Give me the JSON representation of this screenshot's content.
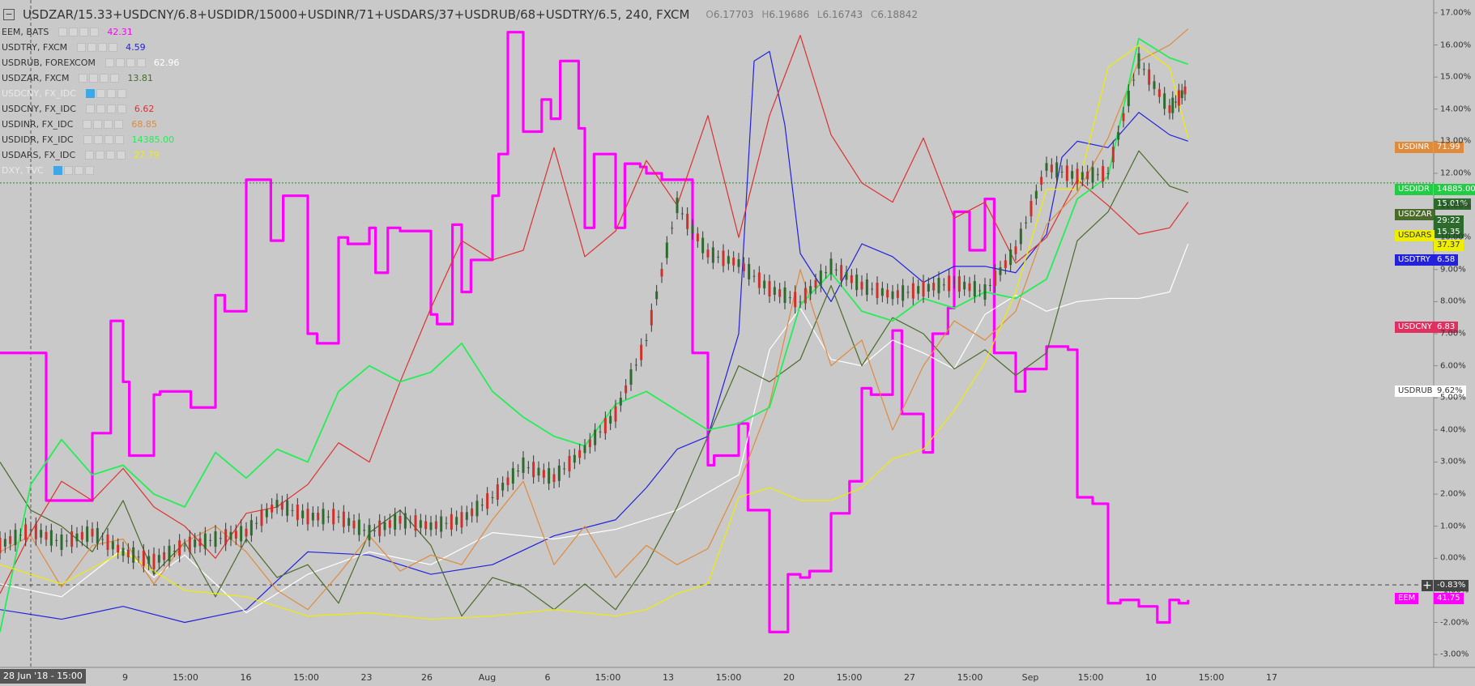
{
  "header": {
    "symbol": "USDZAR/15.33+USDCNY/6.8+USDIDR/15000+USDINR/71+USDARS/37+USDRUB/68+USDTRY/6.5, 240, FXCM",
    "open_label": "O",
    "open": "6.17703",
    "high_label": "H",
    "high": "6.19686",
    "low_label": "L",
    "low": "6.16743",
    "close_label": "C",
    "close": "6.18842"
  },
  "legend": [
    {
      "name": "EEM, BATS",
      "value": "42.31",
      "color": "#ff00ff",
      "dim": false,
      "eye_on": false
    },
    {
      "name": "USDTRY, FXCM",
      "value": "4.59",
      "color": "#2222dd",
      "dim": false,
      "eye_on": false
    },
    {
      "name": "USDRUB, FOREXCOM",
      "value": "62.96",
      "color": "#ffffff",
      "dim": false,
      "eye_on": false
    },
    {
      "name": "USDZAR, FXCM",
      "value": "13.81",
      "color": "#4a6b2a",
      "dim": false,
      "eye_on": false
    },
    {
      "name": "USDCNY, FX_IDC",
      "value": "",
      "color": "#e9e9e9",
      "dim": true,
      "eye_on": true
    },
    {
      "name": "USDCNY, FX_IDC",
      "value": "6.62",
      "color": "#e03030",
      "dim": false,
      "eye_on": false
    },
    {
      "name": "USDINR, FX_IDC",
      "value": "68.85",
      "color": "#e08a3c",
      "dim": false,
      "eye_on": false
    },
    {
      "name": "USDIDR, FX_IDC",
      "value": "14385.00",
      "color": "#22ee55",
      "dim": false,
      "eye_on": false
    },
    {
      "name": "USDARS, FX_IDC",
      "value": "27.79",
      "color": "#eeee00",
      "dim": false,
      "eye_on": false
    },
    {
      "name": "DXY, TVC",
      "value": "",
      "color": "#e9e9e9",
      "dim": true,
      "eye_on": true
    }
  ],
  "price_tags": [
    {
      "label": "USDINR",
      "value": "71.99",
      "bg": "#e08a3c",
      "fg": "#ffffff",
      "y": 12.8
    },
    {
      "label": "USDIDR",
      "value": "14885.00",
      "bg": "#22cc44",
      "fg": "#ffffff",
      "y": 11.5
    },
    {
      "label": "",
      "value": "15.01%",
      "bg": "#2d6b2d",
      "fg": "#ffffff",
      "y": 11.05
    },
    {
      "label": "USDZAR",
      "value": "",
      "bg": "#4a6b2a",
      "fg": "#ffffff",
      "y": 10.7
    },
    {
      "label": "",
      "value": "29:22",
      "bg": "#2d6b2d",
      "fg": "#ffffff",
      "y": 10.5
    },
    {
      "label": "",
      "value": "15.35",
      "bg": "#2d6b2d",
      "fg": "#ffffff",
      "y": 10.15
    },
    {
      "label": "USDARS",
      "value": "",
      "bg": "#eeee00",
      "fg": "#333333",
      "y": 10.05
    },
    {
      "label": "",
      "value": "37.37",
      "bg": "#eeee00",
      "fg": "#333333",
      "y": 9.75
    },
    {
      "label": "USDTRY",
      "value": "6.58",
      "bg": "#2222dd",
      "fg": "#ffffff",
      "y": 9.3
    },
    {
      "label": "USDCNY",
      "value": "6.83",
      "bg": "#e03060",
      "fg": "#ffffff",
      "y": 7.2
    },
    {
      "label": "USDRUB",
      "value": "9.62%",
      "bg": "#ffffff",
      "fg": "#333333",
      "y": 5.2
    },
    {
      "label": "EEM",
      "value": "41.75",
      "bg": "#ff00ff",
      "fg": "#ffffff",
      "y": -1.25
    }
  ],
  "crosshair": {
    "value": "-0.83%",
    "date": "28 Jun '18 - 15:00",
    "icon": "crosshair-plus-icon"
  },
  "chart_data": {
    "type": "line",
    "x_axis_labels": [
      "28 Jun '18 - 15:00",
      "15:00",
      "9",
      "15:00",
      "16",
      "15:00",
      "23",
      "26",
      "Aug",
      "6",
      "15:00",
      "13",
      "15:00",
      "20",
      "15:00",
      "27",
      "15:00",
      "Sep",
      "15:00",
      "10",
      "15:00",
      "17"
    ],
    "yticks": [
      "17.00%",
      "16.00%",
      "15.00%",
      "14.00%",
      "13.00%",
      "12.00%",
      "11.00%",
      "10.00%",
      "9.00%",
      "8.00%",
      "7.00%",
      "6.00%",
      "5.00%",
      "4.00%",
      "3.00%",
      "2.00%",
      "1.00%",
      "0.00%",
      "-1.00%",
      "-2.00%",
      "-3.00%"
    ],
    "ylim": [
      -3.3,
      17.2
    ],
    "grid": false,
    "ylabel": "",
    "reference_lines": [
      {
        "y": 11.7,
        "style": "dotted",
        "color": "#2d8a2d"
      },
      {
        "y": -0.83,
        "style": "dashed",
        "color": "#444444"
      }
    ],
    "series": [
      {
        "name": "EEM",
        "color": "#ff00ff",
        "width": 3.2,
        "step": true,
        "x": [
          0,
          1.5,
          3,
          3.6,
          4,
          4.2,
          5,
          5.2,
          6,
          6.2,
          7,
          7.3,
          8,
          8.8,
          9.2,
          10,
          10.3,
          11,
          11.3,
          12,
          12.2,
          12.6,
          13,
          14,
          14.2,
          14.7,
          15,
          15.3,
          16,
          16.2,
          16.5,
          17,
          17.6,
          17.9,
          18.2,
          18.8,
          19,
          19.3,
          20,
          20.3,
          20.8,
          21,
          21.5,
          22.5,
          23,
          23.2,
          24,
          24.3,
          25,
          25.6,
          26,
          26.3,
          27,
          27.6,
          28,
          28.3,
          29,
          29.3,
          30,
          30.3,
          30.8,
          31,
          31.5,
          32,
          32.3,
          33,
          33.3,
          34,
          34.3,
          34.7,
          35,
          35.5,
          36,
          36.4,
          37,
          37.6,
          38,
          38.3,
          38.6
        ],
        "y": [
          6.4,
          1.8,
          3.9,
          7.4,
          5.5,
          3.2,
          5.1,
          5.2,
          5.2,
          4.7,
          8.2,
          7.7,
          11.8,
          9.9,
          11.3,
          7.0,
          6.7,
          10.0,
          9.8,
          10.3,
          8.9,
          10.3,
          10.2,
          7.6,
          7.3,
          10.4,
          8.3,
          9.3,
          11.3,
          12.6,
          16.4,
          13.3,
          14.3,
          13.7,
          15.5,
          13.4,
          10.3,
          12.6,
          10.3,
          12.3,
          12.2,
          12.0,
          11.8,
          6.4,
          2.9,
          3.2,
          4.2,
          1.5,
          -2.3,
          -0.5,
          -0.6,
          -0.4,
          1.4,
          2.4,
          5.3,
          5.1,
          7.1,
          4.5,
          3.3,
          7.0,
          7.8,
          10.8,
          9.6,
          11.2,
          6.4,
          5.2,
          5.9,
          6.6,
          6.6,
          6.5,
          1.9,
          1.7,
          -1.4,
          -1.3,
          -1.5,
          -2.0,
          -1.3,
          -1.4,
          -1.3
        ]
      },
      {
        "name": "USDTRY",
        "color": "#2222dd",
        "width": 1.2,
        "x": [
          0,
          2,
          4,
          6,
          8,
          10,
          12,
          14,
          16,
          18,
          20,
          21,
          22,
          23,
          24,
          24.5,
          25,
          25.5,
          26,
          27,
          28,
          29,
          30,
          31,
          32,
          33,
          34,
          34.5,
          35,
          36,
          37,
          38,
          38.6
        ],
        "y": [
          -1.6,
          -1.9,
          -1.5,
          -2.0,
          -1.6,
          0.2,
          0.1,
          -0.5,
          -0.2,
          0.7,
          1.2,
          2.2,
          3.4,
          3.8,
          7.0,
          15.5,
          15.8,
          13.5,
          9.5,
          8.0,
          9.8,
          9.4,
          8.6,
          9.1,
          9.1,
          8.9,
          10.1,
          12.5,
          13.0,
          12.8,
          13.9,
          13.2,
          13.0
        ]
      },
      {
        "name": "USDRUB",
        "color": "#ffffff",
        "width": 1.2,
        "x": [
          0,
          2,
          4,
          5,
          6,
          8,
          10,
          12,
          14,
          16,
          18,
          20,
          22,
          24,
          25,
          26,
          27,
          28,
          29,
          30,
          31,
          32,
          33,
          34,
          35,
          36,
          37,
          38,
          38.6
        ],
        "y": [
          -0.8,
          -1.2,
          0.3,
          -0.6,
          0.1,
          -1.7,
          -0.5,
          0.2,
          -0.2,
          0.8,
          0.6,
          0.9,
          1.5,
          2.6,
          6.5,
          7.8,
          6.2,
          6.0,
          6.8,
          6.4,
          5.9,
          7.6,
          8.2,
          7.7,
          8.0,
          8.1,
          8.1,
          8.3,
          9.8
        ]
      },
      {
        "name": "USDZAR",
        "color": "#4a6b2a",
        "width": 1.2,
        "x": [
          0,
          1,
          2,
          3,
          4,
          5,
          6,
          7,
          8,
          9,
          10,
          11,
          12,
          13,
          14,
          15,
          16,
          17,
          18,
          19,
          20,
          21,
          22,
          23,
          24,
          25,
          26,
          27,
          28,
          29,
          30,
          31,
          32,
          33,
          34,
          35,
          36,
          37,
          38,
          38.6
        ],
        "y": [
          3.0,
          1.5,
          1.0,
          0.2,
          1.8,
          -0.5,
          0.5,
          -1.2,
          0.6,
          -0.6,
          -0.2,
          -1.4,
          0.8,
          1.5,
          0.4,
          -1.8,
          -0.6,
          -0.9,
          -1.6,
          -0.8,
          -1.6,
          -0.2,
          1.6,
          3.8,
          6.0,
          5.5,
          6.2,
          8.5,
          6.0,
          7.5,
          7.0,
          5.9,
          6.5,
          5.7,
          6.4,
          9.9,
          10.8,
          12.7,
          11.6,
          11.4
        ]
      },
      {
        "name": "USDCNY",
        "color": "#e03030",
        "width": 1.2,
        "x": [
          0,
          1,
          2,
          3,
          4,
          5,
          6,
          7,
          8,
          9,
          10,
          11,
          12,
          13,
          14,
          15,
          16,
          17,
          18,
          19,
          20,
          21,
          22,
          23,
          24,
          25,
          26,
          27,
          28,
          29,
          30,
          31,
          32,
          33,
          34,
          35,
          36,
          37,
          38,
          38.6
        ],
        "y": [
          -1.1,
          0.8,
          2.4,
          1.8,
          2.8,
          1.6,
          1.0,
          0.0,
          1.4,
          1.6,
          2.3,
          3.6,
          3.0,
          5.5,
          7.8,
          9.9,
          9.3,
          9.6,
          12.8,
          9.4,
          10.2,
          12.4,
          11.0,
          13.8,
          10.0,
          13.8,
          16.3,
          13.2,
          11.7,
          11.1,
          13.1,
          10.6,
          11.1,
          9.2,
          10.0,
          11.8,
          11.0,
          10.1,
          10.3,
          11.1
        ]
      },
      {
        "name": "USDINR",
        "color": "#e08a3c",
        "width": 1.2,
        "x": [
          0,
          1,
          2,
          3,
          4,
          5,
          6,
          7,
          8,
          9,
          10,
          11,
          12,
          13,
          14,
          15,
          16,
          17,
          18,
          19,
          20,
          21,
          22,
          23,
          24,
          25,
          26,
          27,
          28,
          29,
          30,
          31,
          32,
          33,
          34,
          35,
          36,
          37,
          38,
          38.6
        ],
        "y": [
          0.2,
          0.7,
          -0.9,
          0.4,
          0.6,
          -0.8,
          0.5,
          1.0,
          0.2,
          -1.0,
          -1.6,
          -0.5,
          0.7,
          -0.4,
          0.1,
          -0.2,
          1.2,
          2.4,
          -0.2,
          1.0,
          -0.6,
          0.4,
          -0.2,
          0.3,
          2.3,
          4.8,
          9.0,
          6.0,
          6.8,
          4.0,
          6.0,
          7.4,
          6.8,
          7.7,
          10.4,
          11.4,
          13.1,
          15.5,
          16.0,
          16.5
        ]
      },
      {
        "name": "USDIDR",
        "color": "#22ee55",
        "width": 1.8,
        "x": [
          0,
          1,
          2,
          3,
          4,
          5,
          6,
          7,
          8,
          9,
          10,
          11,
          12,
          13,
          14,
          15,
          16,
          17,
          18,
          19,
          20,
          21,
          22,
          23,
          24,
          25,
          26,
          27,
          28,
          29,
          30,
          31,
          32,
          33,
          34,
          35,
          36,
          37,
          38,
          38.6
        ],
        "y": [
          -2.3,
          2.3,
          3.7,
          2.6,
          2.9,
          2.0,
          1.6,
          3.3,
          2.5,
          3.4,
          3.0,
          5.2,
          6.0,
          5.5,
          5.8,
          6.7,
          5.2,
          4.4,
          3.8,
          3.5,
          4.8,
          5.2,
          4.6,
          4.0,
          4.2,
          4.7,
          7.9,
          8.9,
          7.7,
          7.4,
          8.1,
          7.8,
          8.3,
          8.1,
          8.7,
          11.2,
          11.9,
          16.2,
          15.6,
          15.4
        ]
      },
      {
        "name": "USDARS",
        "color": "#eeee00",
        "width": 1.2,
        "x": [
          0,
          2,
          4,
          6,
          8,
          10,
          12,
          14,
          16,
          18,
          20,
          21,
          22,
          23,
          24,
          25,
          26,
          27,
          28,
          29,
          30,
          31,
          32,
          33,
          34,
          35,
          36,
          37,
          38,
          38.6
        ],
        "y": [
          -0.2,
          -0.8,
          0.2,
          -1.0,
          -1.2,
          -1.8,
          -1.7,
          -1.9,
          -1.8,
          -1.6,
          -1.8,
          -1.6,
          -1.1,
          -0.8,
          1.9,
          2.2,
          1.8,
          1.8,
          2.2,
          3.1,
          3.4,
          4.6,
          6.1,
          8.3,
          11.5,
          11.5,
          15.3,
          16.0,
          15.3,
          13.1
        ]
      },
      {
        "name": "USDZAR/15.33+USDCNY/6.8+USDIDR/15000+USDINR/71+USDARS/37+USDRUB/68+USDTRY/6.5",
        "color": "#333333",
        "width": 1.4,
        "candles": true,
        "x": [
          0,
          1,
          2,
          3,
          4,
          5,
          6,
          7,
          8,
          9,
          10,
          11,
          12,
          13,
          14,
          15,
          16,
          17,
          18,
          19,
          20,
          21,
          22,
          23,
          24,
          25,
          26,
          27,
          28,
          29,
          30,
          31,
          32,
          33,
          34,
          35,
          36,
          37,
          38,
          38.6
        ],
        "y": [
          0.4,
          0.9,
          0.5,
          0.8,
          0.2,
          -0.1,
          0.4,
          0.6,
          0.8,
          1.7,
          1.3,
          1.3,
          0.8,
          1.2,
          1.0,
          1.2,
          1.9,
          2.9,
          2.5,
          3.4,
          4.5,
          6.8,
          11.0,
          9.5,
          9.2,
          8.4,
          8.0,
          9.1,
          8.5,
          8.2,
          8.4,
          8.6,
          8.3,
          9.6,
          12.2,
          11.9,
          12.0,
          15.5,
          14.0,
          14.7
        ]
      }
    ]
  }
}
